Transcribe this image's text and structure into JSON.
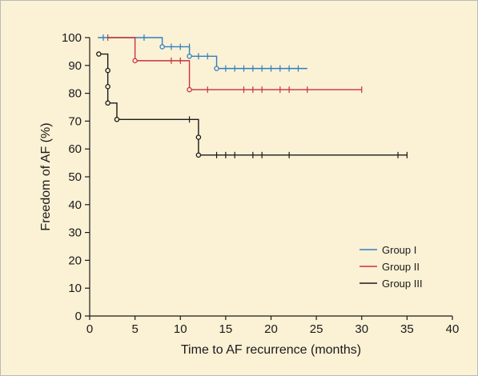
{
  "chart_data": {
    "type": "line",
    "subtype": "kaplan-meier step curve",
    "xlabel": "Time to AF recurrence (months)",
    "ylabel": "Freedom of AF (%)",
    "xlim": [
      0,
      40
    ],
    "ylim": [
      0,
      100
    ],
    "xticks": [
      "0",
      "5",
      "10",
      "15",
      "20",
      "25",
      "30",
      "35",
      "40"
    ],
    "yticks": [
      "0",
      "10",
      "20",
      "30",
      "40",
      "50",
      "60",
      "70",
      "80",
      "90",
      "100"
    ],
    "grid": false,
    "legend_position": "bottom-right",
    "series": [
      {
        "name": "Group I",
        "color": "#2f7fbf",
        "steps": [
          [
            0.9,
            100
          ],
          [
            8,
            96.7
          ],
          [
            11,
            93.3
          ],
          [
            14,
            88.9
          ],
          [
            24,
            88.9
          ]
        ],
        "events": [
          [
            8,
            96.7
          ],
          [
            11,
            93.3
          ],
          [
            14,
            88.9
          ]
        ],
        "censored": [
          [
            1.5,
            100
          ],
          [
            6,
            100
          ],
          [
            9,
            96.7
          ],
          [
            10,
            96.7
          ],
          [
            11,
            96.7
          ],
          [
            12,
            93.3
          ],
          [
            13,
            93.3
          ],
          [
            15,
            88.9
          ],
          [
            16,
            88.9
          ],
          [
            17,
            88.9
          ],
          [
            18,
            88.9
          ],
          [
            19,
            88.9
          ],
          [
            20,
            88.9
          ],
          [
            21,
            88.9
          ],
          [
            22,
            88.9
          ],
          [
            23,
            88.9
          ]
        ]
      },
      {
        "name": "Group II",
        "color": "#c8323c",
        "steps": [
          [
            2,
            100
          ],
          [
            5,
            91.7
          ],
          [
            11,
            81.3
          ],
          [
            30,
            81.3
          ]
        ],
        "events": [
          [
            5,
            91.7
          ],
          [
            11,
            81.3
          ]
        ],
        "censored": [
          [
            2,
            100
          ],
          [
            9,
            91.7
          ],
          [
            10,
            91.7
          ],
          [
            13,
            81.3
          ],
          [
            17,
            81.3
          ],
          [
            18,
            81.3
          ],
          [
            19,
            81.3
          ],
          [
            21,
            81.3
          ],
          [
            22,
            81.3
          ],
          [
            24,
            81.3
          ],
          [
            30,
            81.3
          ]
        ]
      },
      {
        "name": "Group III",
        "color": "#1a1a1a",
        "steps": [
          [
            1,
            94.1
          ],
          [
            2,
            88.2
          ],
          [
            2,
            82.4
          ],
          [
            2,
            76.5
          ],
          [
            3,
            70.6
          ],
          [
            12,
            64.2
          ],
          [
            12,
            57.8
          ],
          [
            35,
            57.8
          ]
        ],
        "events": [
          [
            1,
            94.1
          ],
          [
            2,
            88.2
          ],
          [
            2,
            82.4
          ],
          [
            2,
            76.5
          ],
          [
            3,
            70.6
          ],
          [
            12,
            64.2
          ],
          [
            12,
            57.8
          ]
        ],
        "censored": [
          [
            11,
            70.6
          ],
          [
            14,
            57.8
          ],
          [
            15,
            57.8
          ],
          [
            16,
            57.8
          ],
          [
            18,
            57.8
          ],
          [
            19,
            57.8
          ],
          [
            22,
            57.8
          ],
          [
            34,
            57.8
          ],
          [
            35,
            57.8
          ]
        ]
      }
    ]
  }
}
